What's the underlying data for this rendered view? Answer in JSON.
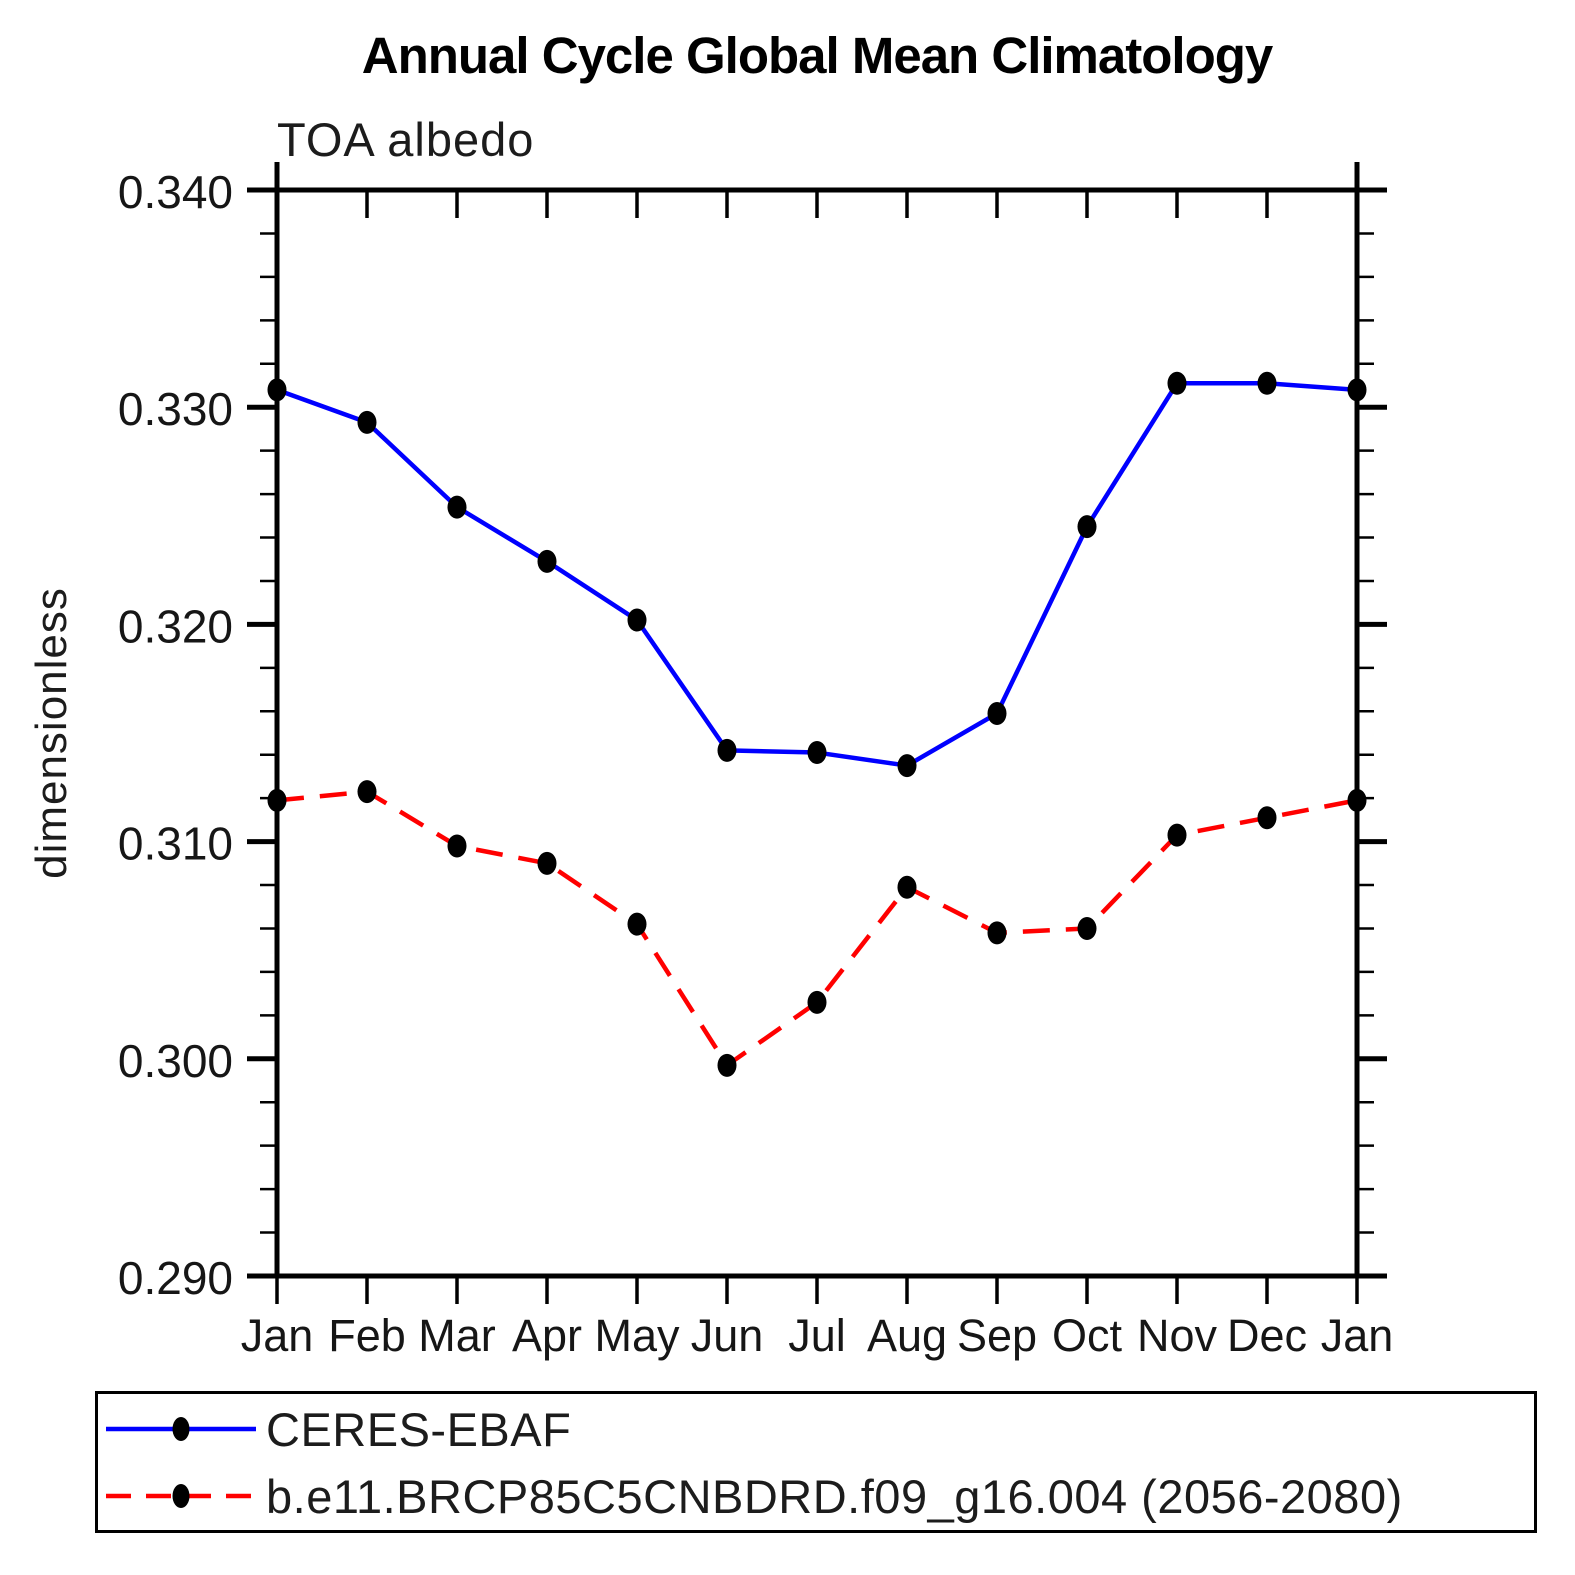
{
  "chart_data": {
    "type": "line",
    "title": "Annual Cycle Global Mean Climatology",
    "subtitle": "TOA albedo",
    "ylabel": "dimensionless",
    "xlabel": "",
    "categories": [
      "Jan",
      "Feb",
      "Mar",
      "Apr",
      "May",
      "Jun",
      "Jul",
      "Aug",
      "Sep",
      "Oct",
      "Nov",
      "Dec",
      "Jan"
    ],
    "ylim": [
      0.29,
      0.34
    ],
    "ytick_major_labels": [
      "0.340",
      "0.330",
      "0.320",
      "0.310",
      "0.300",
      "0.290"
    ],
    "ytick_major_step": 0.01,
    "ytick_minor_step": 0.002,
    "grid": false,
    "frame": true,
    "legend_position": "bottom-left-box",
    "axis_color": "#000000",
    "series": [
      {
        "name": "CERES-EBAF",
        "color": "#0000ff",
        "style": "solid",
        "marker": "circle",
        "marker_color": "#000000",
        "values": [
          0.3308,
          0.3293,
          0.3254,
          0.3229,
          0.3202,
          0.3142,
          0.3141,
          0.3135,
          0.3159,
          0.3245,
          0.3311,
          0.3311,
          0.3308
        ]
      },
      {
        "name": "b.e11.BRCP85C5CNBDRD.f09_g16.004 (2056-2080)",
        "color": "#ff0000",
        "style": "dashed",
        "marker": "circle",
        "marker_color": "#000000",
        "values": [
          0.3119,
          0.3123,
          0.3098,
          0.309,
          0.3062,
          0.2997,
          0.3026,
          0.3079,
          0.3058,
          0.306,
          0.3103,
          0.3111,
          0.3119
        ]
      }
    ]
  }
}
